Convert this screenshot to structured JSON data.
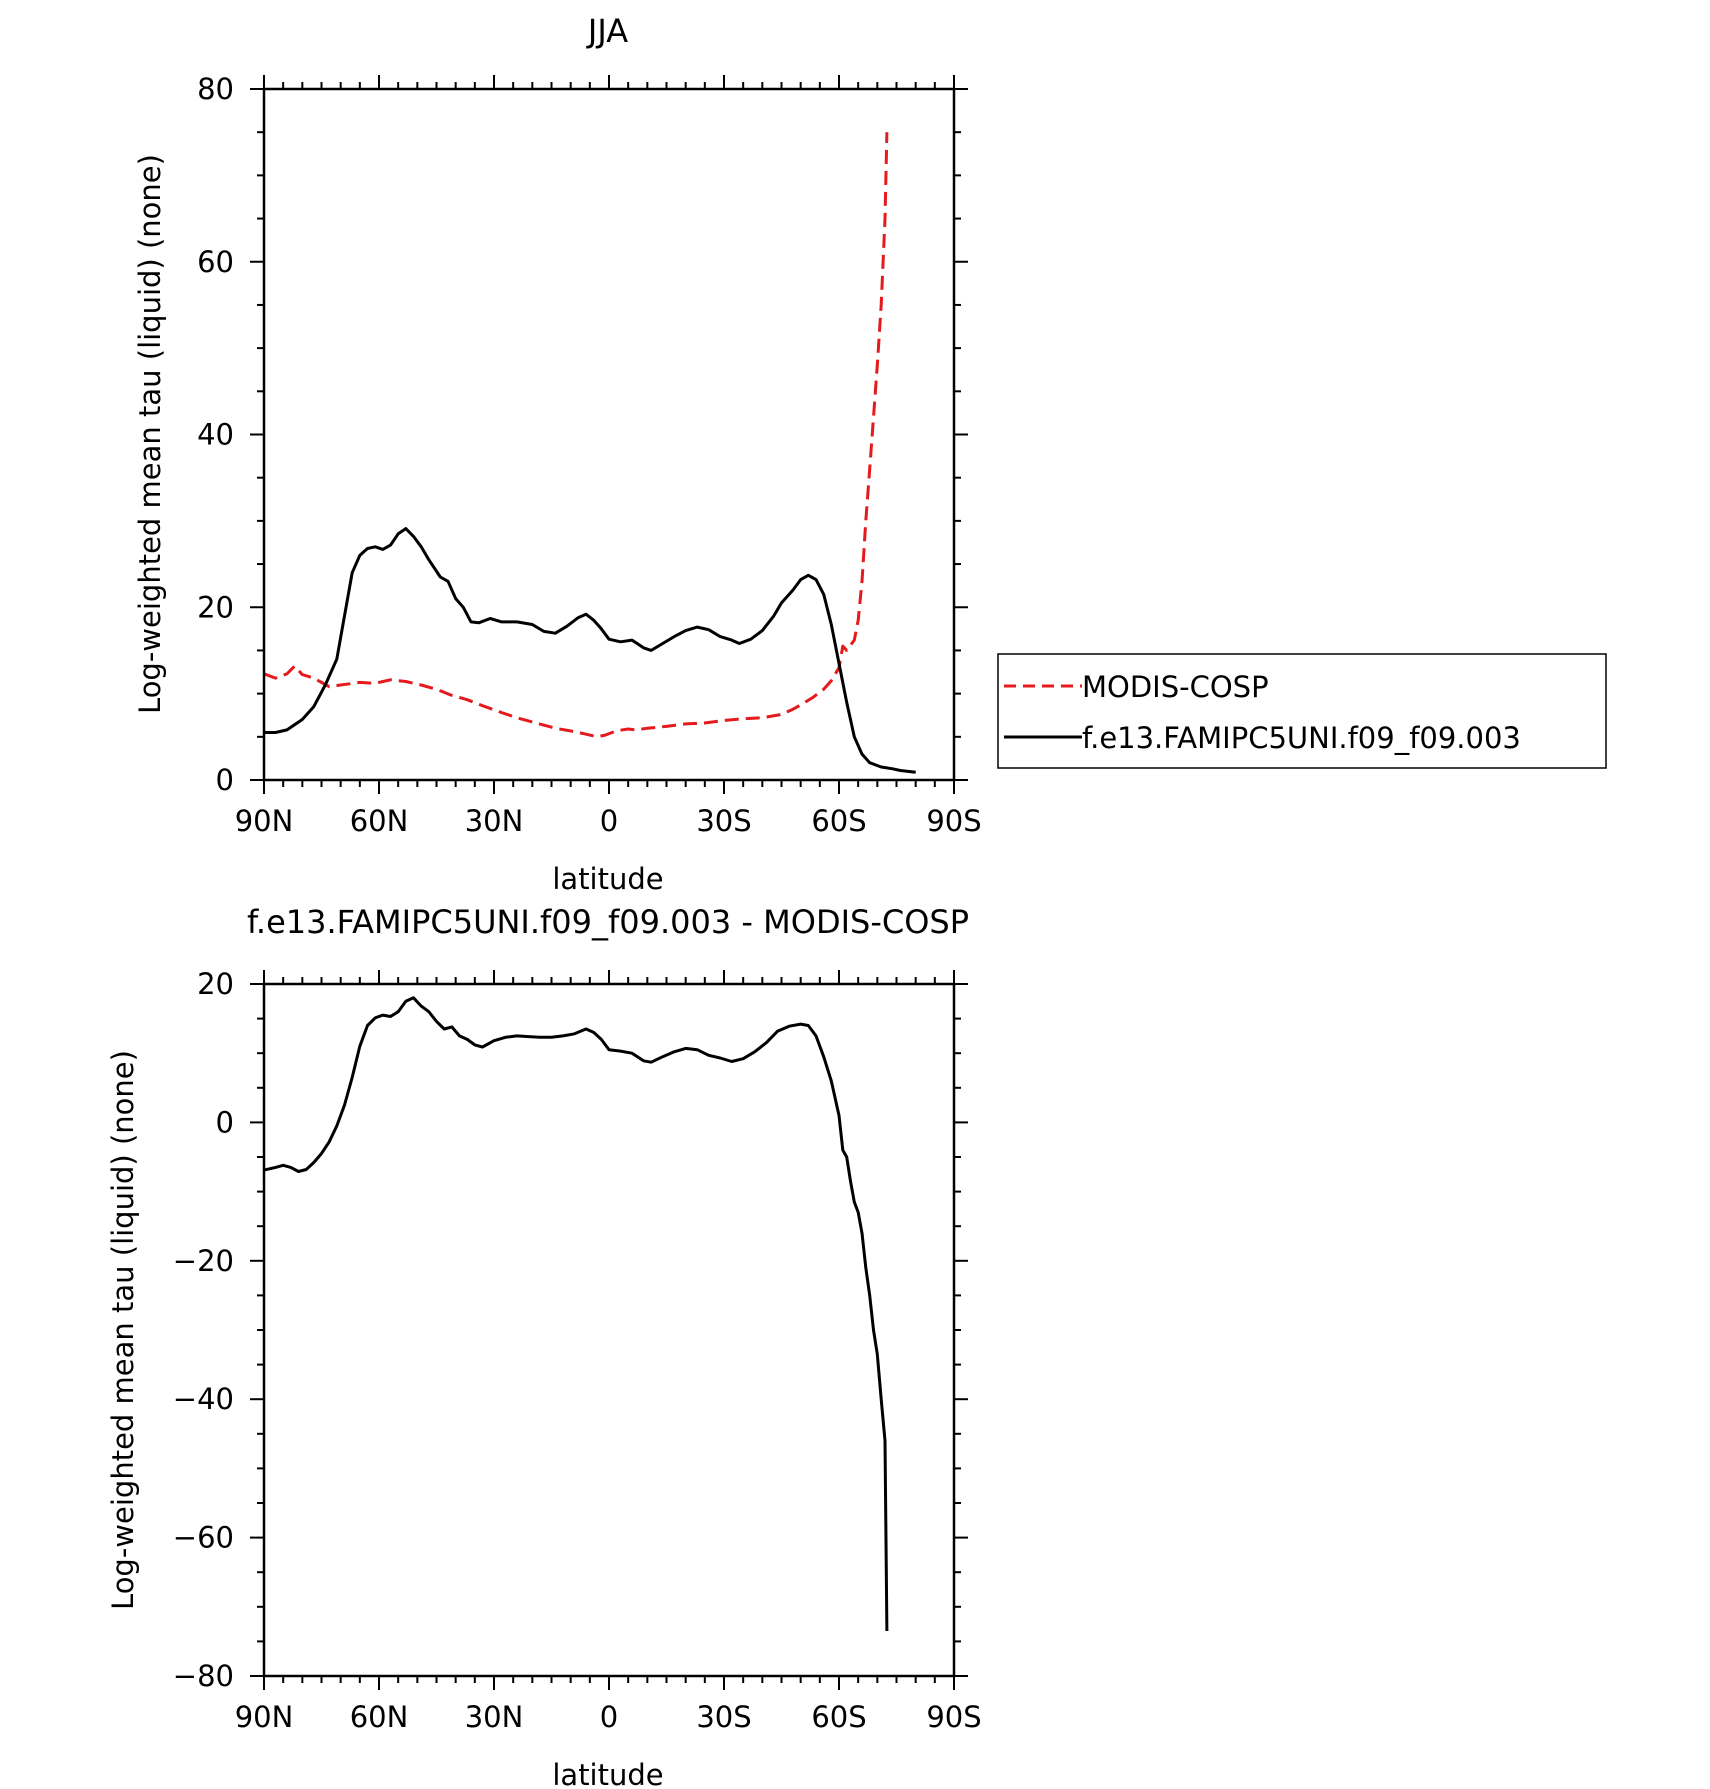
{
  "chart_data": [
    {
      "type": "line",
      "title": "JJA",
      "xlabel": "latitude",
      "ylabel": "Log-weighted mean tau (liquid) (none)",
      "xlim": [
        90,
        -90
      ],
      "ylim": [
        0,
        80
      ],
      "x_ticks": [
        90,
        60,
        30,
        0,
        -30,
        -60,
        -90
      ],
      "x_tick_labels": [
        "90N",
        "60N",
        "30N",
        "0",
        "30S",
        "60S",
        "90S"
      ],
      "y_ticks": [
        0,
        20,
        40,
        60,
        80
      ],
      "y_tick_labels": [
        "0",
        "20",
        "40",
        "60",
        "80"
      ],
      "legend_position": "right",
      "series": [
        {
          "name": "MODIS-COSP",
          "color": "#e41a1c",
          "style": "dashed",
          "points": [
            [
              90,
              12.3
            ],
            [
              87,
              11.8
            ],
            [
              84,
              12.3
            ],
            [
              82,
              13.2
            ],
            [
              80,
              12.2
            ],
            [
              77,
              11.8
            ],
            [
              73,
              10.8
            ],
            [
              70,
              11.0
            ],
            [
              65,
              11.3
            ],
            [
              61,
              11.2
            ],
            [
              57,
              11.6
            ],
            [
              53,
              11.4
            ],
            [
              49,
              11.0
            ],
            [
              45,
              10.5
            ],
            [
              41,
              9.8
            ],
            [
              37,
              9.3
            ],
            [
              33,
              8.6
            ],
            [
              28,
              7.8
            ],
            [
              24,
              7.2
            ],
            [
              19,
              6.6
            ],
            [
              14,
              6.0
            ],
            [
              9,
              5.6
            ],
            [
              6,
              5.3
            ],
            [
              3,
              5.0
            ],
            [
              1,
              5.2
            ],
            [
              -2,
              5.7
            ],
            [
              -5,
              5.9
            ],
            [
              -7,
              5.8
            ],
            [
              -10,
              6.0
            ],
            [
              -15,
              6.2
            ],
            [
              -20,
              6.5
            ],
            [
              -25,
              6.6
            ],
            [
              -30,
              6.9
            ],
            [
              -35,
              7.1
            ],
            [
              -40,
              7.2
            ],
            [
              -45,
              7.6
            ],
            [
              -48,
              8.2
            ],
            [
              -50,
              8.7
            ],
            [
              -53,
              9.5
            ],
            [
              -56,
              10.5
            ],
            [
              -58,
              11.5
            ],
            [
              -60,
              13.0
            ],
            [
              -61,
              15.5
            ],
            [
              -62,
              15.0
            ],
            [
              -64,
              16.2
            ],
            [
              -65,
              18.5
            ],
            [
              -66,
              23
            ],
            [
              -67,
              30
            ],
            [
              -68,
              36
            ],
            [
              -69,
              42
            ],
            [
              -70,
              48
            ],
            [
              -71,
              55
            ],
            [
              -72,
              65
            ],
            [
              -72.5,
              75
            ]
          ]
        },
        {
          "name": "f.e13.FAMIPC5UNI.f09_f09.003",
          "color": "#000000",
          "style": "solid",
          "points": [
            [
              90,
              5.5
            ],
            [
              87,
              5.5
            ],
            [
              84,
              5.8
            ],
            [
              80,
              7.0
            ],
            [
              77,
              8.5
            ],
            [
              74,
              11.0
            ],
            [
              71,
              14.0
            ],
            [
              69,
              19.0
            ],
            [
              67,
              24.0
            ],
            [
              65,
              26.0
            ],
            [
              63,
              26.8
            ],
            [
              61,
              27.0
            ],
            [
              59,
              26.7
            ],
            [
              57,
              27.2
            ],
            [
              55,
              28.5
            ],
            [
              53,
              29.1
            ],
            [
              51,
              28.2
            ],
            [
              49,
              27.0
            ],
            [
              47,
              25.5
            ],
            [
              44,
              23.5
            ],
            [
              42,
              23.0
            ],
            [
              40,
              21.0
            ],
            [
              38,
              20.0
            ],
            [
              36,
              18.3
            ],
            [
              34,
              18.2
            ],
            [
              31,
              18.7
            ],
            [
              28,
              18.3
            ],
            [
              24,
              18.3
            ],
            [
              20,
              18.0
            ],
            [
              17,
              17.2
            ],
            [
              14,
              17.0
            ],
            [
              11,
              17.8
            ],
            [
              8,
              18.8
            ],
            [
              6,
              19.2
            ],
            [
              4,
              18.5
            ],
            [
              2,
              17.5
            ],
            [
              0,
              16.3
            ],
            [
              -3,
              16.0
            ],
            [
              -6,
              16.2
            ],
            [
              -9,
              15.3
            ],
            [
              -11,
              15.0
            ],
            [
              -14,
              15.8
            ],
            [
              -17,
              16.6
            ],
            [
              -20,
              17.3
            ],
            [
              -23,
              17.7
            ],
            [
              -26,
              17.4
            ],
            [
              -29,
              16.6
            ],
            [
              -32,
              16.2
            ],
            [
              -34,
              15.8
            ],
            [
              -37,
              16.3
            ],
            [
              -40,
              17.3
            ],
            [
              -43,
              19.0
            ],
            [
              -45,
              20.5
            ],
            [
              -48,
              22.0
            ],
            [
              -50,
              23.2
            ],
            [
              -52,
              23.7
            ],
            [
              -54,
              23.2
            ],
            [
              -56,
              21.5
            ],
            [
              -58,
              18.0
            ],
            [
              -60,
              13.5
            ],
            [
              -62,
              9.0
            ],
            [
              -64,
              5.0
            ],
            [
              -66,
              3.0
            ],
            [
              -68,
              2.0
            ],
            [
              -71,
              1.5
            ],
            [
              -74,
              1.3
            ],
            [
              -76,
              1.1
            ],
            [
              -78,
              1.0
            ],
            [
              -80,
              0.9
            ]
          ]
        }
      ]
    },
    {
      "type": "line",
      "title": "f.e13.FAMIPC5UNI.f09_f09.003 - MODIS-COSP",
      "xlabel": "latitude",
      "ylabel": "Log-weighted mean tau (liquid) (none)",
      "xlim": [
        90,
        -90
      ],
      "ylim": [
        -80,
        20
      ],
      "x_ticks": [
        90,
        60,
        30,
        0,
        -30,
        -60,
        -90
      ],
      "x_tick_labels": [
        "90N",
        "60N",
        "30N",
        "0",
        "30S",
        "60S",
        "90S"
      ],
      "y_ticks": [
        -80,
        -60,
        -40,
        -20,
        0,
        20
      ],
      "y_tick_labels": [
        "−80",
        "−60",
        "−40",
        "−20",
        "0",
        "20"
      ],
      "series": [
        {
          "color": "#000000",
          "style": "solid",
          "points": [
            [
              90,
              -6.9
            ],
            [
              87,
              -6.5
            ],
            [
              85,
              -6.2
            ],
            [
              83,
              -6.5
            ],
            [
              81,
              -7.1
            ],
            [
              79,
              -6.8
            ],
            [
              77,
              -5.8
            ],
            [
              75,
              -4.5
            ],
            [
              73,
              -2.8
            ],
            [
              71,
              -0.5
            ],
            [
              69,
              2.5
            ],
            [
              67,
              6.5
            ],
            [
              65,
              11.0
            ],
            [
              63,
              14.0
            ],
            [
              61,
              15.1
            ],
            [
              59,
              15.5
            ],
            [
              57,
              15.3
            ],
            [
              55,
              16.0
            ],
            [
              53,
              17.5
            ],
            [
              51,
              18.0
            ],
            [
              49,
              16.8
            ],
            [
              47,
              16.0
            ],
            [
              45,
              14.6
            ],
            [
              43,
              13.5
            ],
            [
              41,
              13.8
            ],
            [
              39,
              12.5
            ],
            [
              37,
              12.0
            ],
            [
              35,
              11.2
            ],
            [
              33,
              10.9
            ],
            [
              30,
              11.8
            ],
            [
              27,
              12.3
            ],
            [
              24,
              12.5
            ],
            [
              21,
              12.4
            ],
            [
              18,
              12.3
            ],
            [
              15,
              12.3
            ],
            [
              12,
              12.5
            ],
            [
              9,
              12.8
            ],
            [
              6,
              13.5
            ],
            [
              4,
              13.0
            ],
            [
              2,
              12.0
            ],
            [
              0,
              10.5
            ],
            [
              -3,
              10.3
            ],
            [
              -6,
              10.0
            ],
            [
              -9,
              8.9
            ],
            [
              -11,
              8.7
            ],
            [
              -14,
              9.5
            ],
            [
              -17,
              10.2
            ],
            [
              -20,
              10.7
            ],
            [
              -23,
              10.5
            ],
            [
              -26,
              9.7
            ],
            [
              -29,
              9.3
            ],
            [
              -32,
              8.8
            ],
            [
              -35,
              9.2
            ],
            [
              -38,
              10.2
            ],
            [
              -41,
              11.5
            ],
            [
              -44,
              13.2
            ],
            [
              -47,
              13.9
            ],
            [
              -50,
              14.2
            ],
            [
              -52,
              14.0
            ],
            [
              -54,
              12.5
            ],
            [
              -56,
              9.5
            ],
            [
              -58,
              6.0
            ],
            [
              -60,
              1.0
            ],
            [
              -61,
              -4.0
            ],
            [
              -62,
              -5.0
            ],
            [
              -63,
              -8.5
            ],
            [
              -64,
              -11.5
            ],
            [
              -65,
              -13.0
            ],
            [
              -66,
              -16.0
            ],
            [
              -67,
              -21.0
            ],
            [
              -68,
              -25.0
            ],
            [
              -69,
              -30.0
            ],
            [
              -70,
              -33.5
            ],
            [
              -71,
              -40.0
            ],
            [
              -72,
              -46.0
            ],
            [
              -72.5,
              -73.5
            ]
          ]
        }
      ]
    }
  ]
}
